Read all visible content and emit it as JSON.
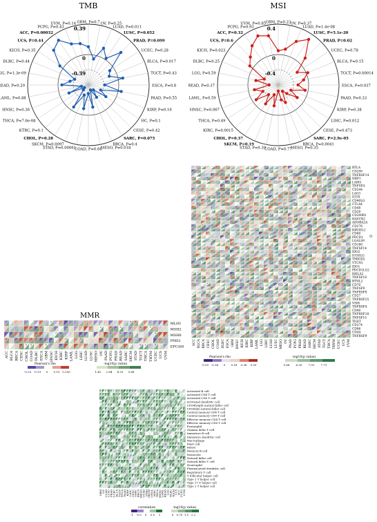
{
  "tmb": {
    "title": "TMB",
    "ring_labels": [
      "0.39",
      "0",
      "-0.39"
    ],
    "color": "#1f5fb0",
    "cancers": [
      {
        "label": "GBM, P=0.7",
        "bold": false,
        "v": 0.1
      },
      {
        "label": "OV, P=0.25",
        "bold": false,
        "v": -0.05
      },
      {
        "label": "LUAD, P=0.011",
        "bold": false,
        "v": 0.12
      },
      {
        "label": "LUSC, P=0.052",
        "bold": true,
        "v": 0.02
      },
      {
        "label": "PRAD, P=0.099",
        "bold": true,
        "v": 0.2
      },
      {
        "label": "UCEC, P=0.28",
        "bold": false,
        "v": -0.06
      },
      {
        "label": "BLCA, P=0.017",
        "bold": false,
        "v": -0.1
      },
      {
        "label": "TGCT, P=0.43",
        "bold": false,
        "v": 0.06
      },
      {
        "label": "ESCA, P=0.8",
        "bold": false,
        "v": -0.18
      },
      {
        "label": "PAAD, P=0.55",
        "bold": false,
        "v": 0.04
      },
      {
        "label": "KIRP, P=0.16",
        "bold": false,
        "v": -0.22
      },
      {
        "label": "HC, P=0.1",
        "bold": false,
        "v": -0.12
      },
      {
        "label": "CESE, P=0.42",
        "bold": false,
        "v": -0.3
      },
      {
        "label": "SARC, P=0.075",
        "bold": true,
        "v": -0.2
      },
      {
        "label": "BRCA, P=0.4",
        "bold": false,
        "v": -0.32
      },
      {
        "label": "MESO, P=0.018",
        "bold": false,
        "v": -0.1
      },
      {
        "label": "COAD, P=0.66",
        "bold": false,
        "v": -0.28
      },
      {
        "label": "STAD, P=0.00061",
        "bold": false,
        "v": -0.08
      },
      {
        "label": "SKCM, P=0.0097",
        "bold": false,
        "v": -0.25
      },
      {
        "label": "CHOL, P=0.28",
        "bold": true,
        "v": -0.05
      },
      {
        "label": "KTRC, P=0.1",
        "bold": false,
        "v": -0.3
      },
      {
        "label": "THCA, P=7.6e-08",
        "bold": false,
        "v": -0.33
      },
      {
        "label": "HNSC, P=0.36",
        "bold": false,
        "v": -0.12
      },
      {
        "label": "LAML, P=0.88",
        "bold": false,
        "v": -0.3
      },
      {
        "label": "READ, P=0.29",
        "bold": false,
        "v": -0.05
      },
      {
        "label": "LGG, P=1.3e-09",
        "bold": false,
        "v": -0.15
      },
      {
        "label": "DLBC, P=0.44",
        "bold": false,
        "v": -0.2
      },
      {
        "label": "KICH, P=0.35",
        "bold": false,
        "v": 0.05
      },
      {
        "label": "UCS, P=0.44",
        "bold": true,
        "v": 0.24
      },
      {
        "label": "ACC, P=0.00032",
        "bold": true,
        "v": 0.3
      },
      {
        "label": "PCPG, P=0.43",
        "bold": false,
        "v": 0.18
      },
      {
        "label": "UVM, P=0.14",
        "bold": false,
        "v": 0.15
      }
    ]
  },
  "msi": {
    "title": "MSI",
    "ring_labels": [
      "0.4",
      "0",
      "-0.4"
    ],
    "color": "#cc1f1a",
    "cancers": [
      {
        "label": "GBM, P=0.23",
        "bold": false,
        "v": 0.05
      },
      {
        "label": "OV, P=0.37",
        "bold": false,
        "v": 0.08
      },
      {
        "label": "LUAD, P=1.4e-08",
        "bold": false,
        "v": 0.22
      },
      {
        "label": "LUSC, P=5.1e-20",
        "bold": true,
        "v": 0.32
      },
      {
        "label": "PRAD, P=0.02",
        "bold": true,
        "v": 0.1
      },
      {
        "label": "UCEC, P=0.78",
        "bold": false,
        "v": -0.1
      },
      {
        "label": "BLCA, P=0.15",
        "bold": false,
        "v": 0.02
      },
      {
        "label": "TGCT, P=0.00014",
        "bold": false,
        "v": -0.06
      },
      {
        "label": "ESCA, P=0.037",
        "bold": false,
        "v": -0.14
      },
      {
        "label": "PAAD, P=0.33",
        "bold": false,
        "v": -0.04
      },
      {
        "label": "KIRP, P=0.38",
        "bold": false,
        "v": -0.22
      },
      {
        "label": "LIHC, P=0.012",
        "bold": false,
        "v": -0.1
      },
      {
        "label": "CESE, P=0.473",
        "bold": false,
        "v": -0.24
      },
      {
        "label": "SARC, P=2.9e-05",
        "bold": true,
        "v": -0.3
      },
      {
        "label": "BRCA, P=0.0041",
        "bold": false,
        "v": -0.15
      },
      {
        "label": "MESO, P=0.35",
        "bold": false,
        "v": -0.2
      },
      {
        "label": "COAD, P=0.77",
        "bold": false,
        "v": -0.32
      },
      {
        "label": "STAD, P=0.39",
        "bold": false,
        "v": -0.12
      },
      {
        "label": "SKCM, P=0.19",
        "bold": true,
        "v": -0.26
      },
      {
        "label": "CHOL, P=0.37",
        "bold": true,
        "v": -0.1
      },
      {
        "label": "KIRC, P=0.0015",
        "bold": false,
        "v": -0.22
      },
      {
        "label": "THCA, P=0.49",
        "bold": false,
        "v": -0.05
      },
      {
        "label": "HNSC, P=0.067",
        "bold": false,
        "v": -0.18
      },
      {
        "label": "LAML, P=0.59",
        "bold": false,
        "v": -0.08
      },
      {
        "label": "READ, P=0.37",
        "bold": false,
        "v": -0.28
      },
      {
        "label": "LGG, P=0.59",
        "bold": false,
        "v": -0.1
      },
      {
        "label": "DLBC, P=0.25",
        "bold": false,
        "v": -0.2
      },
      {
        "label": "KICH, P=0.023",
        "bold": false,
        "v": 0.05
      },
      {
        "label": "UCS, P=0.6",
        "bold": true,
        "v": 0.12
      },
      {
        "label": "ACC, P=0.32",
        "bold": true,
        "v": 0.22
      },
      {
        "label": "PCPG, P=0.93",
        "bold": false,
        "v": 0.3
      },
      {
        "label": "UVM, P=0.85",
        "bold": false,
        "v": 0.26
      }
    ]
  },
  "mmr": {
    "title": "MMR",
    "genes": [
      "MLH1",
      "MSH2",
      "MSH6",
      "PMS2",
      "EPCAM"
    ],
    "cancers": [
      "ACC",
      "BLCA",
      "BRCA",
      "CESC",
      "CHOL",
      "COAD",
      "DLBC",
      "ESCA",
      "GBM",
      "HNSC",
      "KICH",
      "KIRC",
      "KIRP",
      "LAML",
      "LGG",
      "LIHC",
      "LUAD",
      "LUSC",
      "MESO",
      "OV",
      "PAAD",
      "PCPG",
      "PRAD",
      "READ",
      "SARC",
      "SKCM",
      "STAD",
      "TGCT",
      "THCA",
      "THYM",
      "UCEC",
      "UCS",
      "UVM"
    ],
    "legend_rho_title": "Pearson's rho",
    "legend_p_title": "-log10(p value)",
    "rho_ticks": [
      "-0.25",
      "-0.13",
      "0",
      "0.13",
      "0.250"
    ],
    "p_ticks": [
      "1.42",
      "2.84",
      "4.25",
      "5.68"
    ]
  },
  "ici": {
    "genes": [
      "BTLA",
      "CD200",
      "TNFRSF14",
      "NRP1",
      "LAIR1",
      "TNFSF4",
      "CD244",
      "LAG3",
      "ICOS",
      "CD40LG",
      "CTLA4",
      "CD48",
      "CD28",
      "CD200R1",
      "HAVCR2",
      "ADORA2A",
      "CD276",
      "KIR3DL1",
      "CD80",
      "PDCD1",
      "LGALS9",
      "CD160",
      "TNFSF14",
      "IDO2",
      "ICOSLG",
      "TMIGD2",
      "VTCN1",
      "IDO1",
      "PDCD1LG2",
      "HHLA2",
      "TNFSF18",
      "BTNL2",
      "CD70",
      "TNFSF9",
      "TNFRSF8",
      "CD27",
      "TNFRSF25",
      "VSIR",
      "TNFRSF4",
      "CD40",
      "TNFRSF18",
      "TNFSF15",
      "TIGIT",
      "CD274",
      "CD86",
      "CD44",
      "TNFRSF9"
    ],
    "cancers": [
      "ACC",
      "BLCA",
      "BRCA",
      "CESC",
      "CHOL",
      "COAD",
      "DLBC",
      "ESCA",
      "GBM",
      "HNSC",
      "KICH",
      "KIRC",
      "KIRP",
      "LAML",
      "LGG",
      "LIHC",
      "LUAD",
      "LUSC",
      "MESO",
      "OV",
      "PAAD",
      "PCPG",
      "PRAD",
      "READ",
      "SARC",
      "SKCM",
      "STAD",
      "TGCT",
      "THCA",
      "THYM",
      "UCEC",
      "UCS",
      "UVM"
    ],
    "legend_rho_title": "Pearson's rho",
    "legend_p_title": "-log10(p value)",
    "rho_ticks": [
      "-0.55",
      "-0.36",
      "0",
      "0.18",
      "0.36",
      "0.55"
    ],
    "p_ticks": [
      "5.68",
      "6.30",
      "7.01",
      "7.71"
    ]
  },
  "imm": {
    "cells": [
      "Activated B cell",
      "Activated CD4 T cell",
      "Activated CD8 T cell",
      "Activated dendritic cell",
      "CD56bright natural killer cell",
      "CD56dim natural killer cell",
      "Central memory CD4 T cell",
      "Central memory CD8 T cell",
      "Effector memory CD4 T cell",
      "Effector memory CD8 T cell",
      "Eosinophil",
      "Gamma delta T cell",
      "Immature B cell",
      "Immature dendritic cell",
      "Macrophage",
      "Mast cell",
      "MDSC",
      "Memory B cell",
      "Monocyte",
      "Natural killer cell",
      "Natural killer T cell",
      "Neutrophil",
      "Plasmacytoid dendritic cell",
      "Regulatory T cell",
      "T follicular helper cell",
      "Type 1 T helper cell",
      "Type 17 T helper cell",
      "Type 2 T helper cell"
    ],
    "cancers": [
      "GBM",
      "OV",
      "LUAD",
      "LUSC",
      "PRAD",
      "UCEC",
      "BLCA",
      "TGCT",
      "ESCA",
      "PAAD",
      "KIRP",
      "LIHC",
      "CESC",
      "SARC",
      "BRCA",
      "MESO",
      "COAD",
      "STAD",
      "SKCM",
      "CHOL",
      "KIRC",
      "THCA",
      "HNSC",
      "LAML",
      "READ",
      "LGG",
      "DLBC",
      "KICH",
      "UCS",
      "ACC",
      "PCPG",
      "UVM"
    ],
    "legend_corr_title": "correlation",
    "legend_p_title": "-log10(p value)",
    "corr_ticks": [
      "-1",
      "-0.5",
      "0",
      "0.5",
      "1"
    ],
    "p_ticks": [
      "0",
      "0.75",
      "1.5",
      "2.2"
    ]
  },
  "side_mark": "o"
}
